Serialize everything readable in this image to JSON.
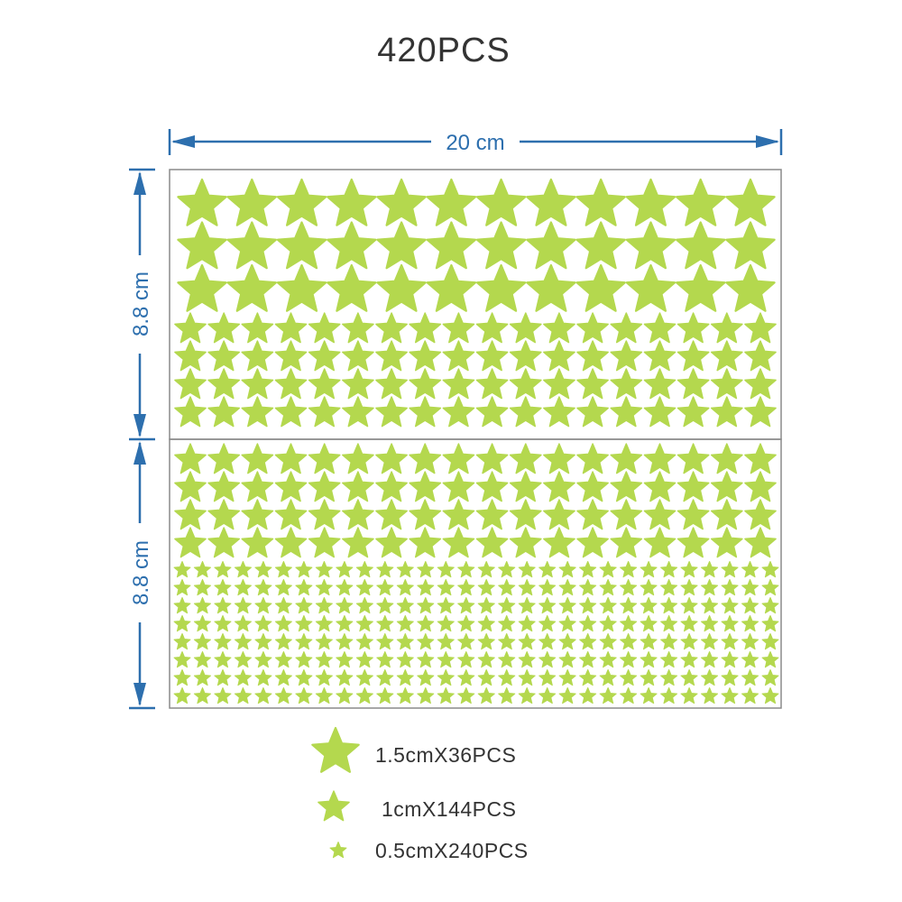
{
  "title": "420PCS",
  "dimensions": {
    "width_label": "20 cm",
    "height_label_top": "8.8 cm",
    "height_label_bottom": "8.8 cm"
  },
  "colors": {
    "star": "#b4d84e",
    "dimension": "#2d6fae",
    "panel_border": "#8a8a8a"
  },
  "sheets": {
    "top": {
      "large_rows": 3,
      "large_cols": 12,
      "medium_rows": 4,
      "medium_cols": 18
    },
    "bottom": {
      "medium_rows": 4,
      "medium_cols": 18,
      "small_rows": 8,
      "small_cols": 30
    }
  },
  "legend": [
    {
      "icon": "star-large-icon",
      "label": "1.5cmX36PCS"
    },
    {
      "icon": "star-medium-icon",
      "label": "1cmX144PCS"
    },
    {
      "icon": "star-small-icon",
      "label": "0.5cmX240PCS"
    }
  ]
}
